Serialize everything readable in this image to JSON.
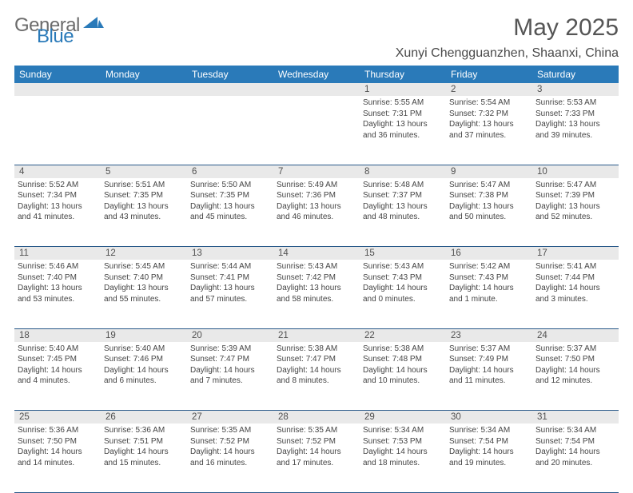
{
  "brand": {
    "name1": "General",
    "name2": "Blue"
  },
  "title": "May 2025",
  "location": "Xunyi Chengguanzhen, Shaanxi, China",
  "colors": {
    "header_bg": "#2a7ab9",
    "header_text": "#ffffff",
    "daynum_bg": "#e9e9e9",
    "daynum_text": "#505050",
    "body_text": "#444444",
    "rule": "#2a5a8a",
    "brand_gray": "#6b6b6b",
    "brand_blue": "#2a7ab9"
  },
  "typography": {
    "title_fontsize": 30,
    "location_fontsize": 16,
    "dayheader_fontsize": 12,
    "daynum_fontsize": 11.5,
    "cell_fontsize": 10,
    "font_family": "Arial"
  },
  "day_headers": [
    "Sunday",
    "Monday",
    "Tuesday",
    "Wednesday",
    "Thursday",
    "Friday",
    "Saturday"
  ],
  "weeks": [
    {
      "nums": [
        "",
        "",
        "",
        "",
        "1",
        "2",
        "3"
      ],
      "cells": [
        null,
        null,
        null,
        null,
        {
          "sunrise": "5:55 AM",
          "sunset": "7:31 PM",
          "daylight": "13 hours and 36 minutes."
        },
        {
          "sunrise": "5:54 AM",
          "sunset": "7:32 PM",
          "daylight": "13 hours and 37 minutes."
        },
        {
          "sunrise": "5:53 AM",
          "sunset": "7:33 PM",
          "daylight": "13 hours and 39 minutes."
        }
      ]
    },
    {
      "nums": [
        "4",
        "5",
        "6",
        "7",
        "8",
        "9",
        "10"
      ],
      "cells": [
        {
          "sunrise": "5:52 AM",
          "sunset": "7:34 PM",
          "daylight": "13 hours and 41 minutes."
        },
        {
          "sunrise": "5:51 AM",
          "sunset": "7:35 PM",
          "daylight": "13 hours and 43 minutes."
        },
        {
          "sunrise": "5:50 AM",
          "sunset": "7:35 PM",
          "daylight": "13 hours and 45 minutes."
        },
        {
          "sunrise": "5:49 AM",
          "sunset": "7:36 PM",
          "daylight": "13 hours and 46 minutes."
        },
        {
          "sunrise": "5:48 AM",
          "sunset": "7:37 PM",
          "daylight": "13 hours and 48 minutes."
        },
        {
          "sunrise": "5:47 AM",
          "sunset": "7:38 PM",
          "daylight": "13 hours and 50 minutes."
        },
        {
          "sunrise": "5:47 AM",
          "sunset": "7:39 PM",
          "daylight": "13 hours and 52 minutes."
        }
      ]
    },
    {
      "nums": [
        "11",
        "12",
        "13",
        "14",
        "15",
        "16",
        "17"
      ],
      "cells": [
        {
          "sunrise": "5:46 AM",
          "sunset": "7:40 PM",
          "daylight": "13 hours and 53 minutes."
        },
        {
          "sunrise": "5:45 AM",
          "sunset": "7:40 PM",
          "daylight": "13 hours and 55 minutes."
        },
        {
          "sunrise": "5:44 AM",
          "sunset": "7:41 PM",
          "daylight": "13 hours and 57 minutes."
        },
        {
          "sunrise": "5:43 AM",
          "sunset": "7:42 PM",
          "daylight": "13 hours and 58 minutes."
        },
        {
          "sunrise": "5:43 AM",
          "sunset": "7:43 PM",
          "daylight": "14 hours and 0 minutes."
        },
        {
          "sunrise": "5:42 AM",
          "sunset": "7:43 PM",
          "daylight": "14 hours and 1 minute."
        },
        {
          "sunrise": "5:41 AM",
          "sunset": "7:44 PM",
          "daylight": "14 hours and 3 minutes."
        }
      ]
    },
    {
      "nums": [
        "18",
        "19",
        "20",
        "21",
        "22",
        "23",
        "24"
      ],
      "cells": [
        {
          "sunrise": "5:40 AM",
          "sunset": "7:45 PM",
          "daylight": "14 hours and 4 minutes."
        },
        {
          "sunrise": "5:40 AM",
          "sunset": "7:46 PM",
          "daylight": "14 hours and 6 minutes."
        },
        {
          "sunrise": "5:39 AM",
          "sunset": "7:47 PM",
          "daylight": "14 hours and 7 minutes."
        },
        {
          "sunrise": "5:38 AM",
          "sunset": "7:47 PM",
          "daylight": "14 hours and 8 minutes."
        },
        {
          "sunrise": "5:38 AM",
          "sunset": "7:48 PM",
          "daylight": "14 hours and 10 minutes."
        },
        {
          "sunrise": "5:37 AM",
          "sunset": "7:49 PM",
          "daylight": "14 hours and 11 minutes."
        },
        {
          "sunrise": "5:37 AM",
          "sunset": "7:50 PM",
          "daylight": "14 hours and 12 minutes."
        }
      ]
    },
    {
      "nums": [
        "25",
        "26",
        "27",
        "28",
        "29",
        "30",
        "31"
      ],
      "cells": [
        {
          "sunrise": "5:36 AM",
          "sunset": "7:50 PM",
          "daylight": "14 hours and 14 minutes."
        },
        {
          "sunrise": "5:36 AM",
          "sunset": "7:51 PM",
          "daylight": "14 hours and 15 minutes."
        },
        {
          "sunrise": "5:35 AM",
          "sunset": "7:52 PM",
          "daylight": "14 hours and 16 minutes."
        },
        {
          "sunrise": "5:35 AM",
          "sunset": "7:52 PM",
          "daylight": "14 hours and 17 minutes."
        },
        {
          "sunrise": "5:34 AM",
          "sunset": "7:53 PM",
          "daylight": "14 hours and 18 minutes."
        },
        {
          "sunrise": "5:34 AM",
          "sunset": "7:54 PM",
          "daylight": "14 hours and 19 minutes."
        },
        {
          "sunrise": "5:34 AM",
          "sunset": "7:54 PM",
          "daylight": "14 hours and 20 minutes."
        }
      ]
    }
  ],
  "labels": {
    "sunrise": "Sunrise: ",
    "sunset": "Sunset: ",
    "daylight": "Daylight: "
  }
}
